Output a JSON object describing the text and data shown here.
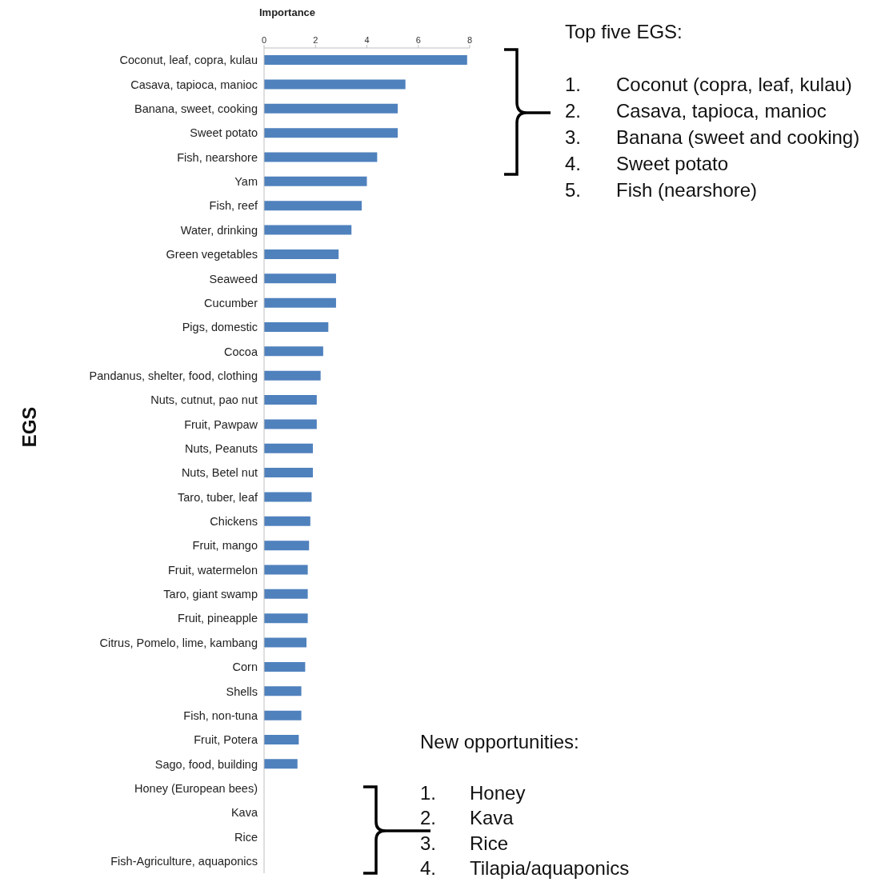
{
  "chart_data": {
    "type": "bar",
    "orientation": "horizontal",
    "xlabel": "Importance",
    "ylabel": "EGS",
    "categories": [
      "Coconut, leaf, copra, kulau",
      "Casava, tapioca, manioc",
      "Banana, sweet, cooking",
      "Sweet potato",
      "Fish, nearshore",
      "Yam",
      "Fish, reef",
      "Water, drinking",
      "Green vegetables",
      "Seaweed",
      "Cucumber",
      "Pigs, domestic",
      "Cocoa",
      "Pandanus, shelter, food, clothing",
      "Nuts, cutnut, pao nut",
      "Fruit, Pawpaw",
      "Nuts, Peanuts",
      "Nuts, Betel nut",
      "Taro, tuber, leaf",
      "Chickens",
      "Fruit, mango",
      "Fruit, watermelon",
      "Taro, giant swamp",
      "Fruit, pineapple",
      "Citrus, Pomelo, lime, kambang",
      "Corn",
      "Shells",
      "Fish, non-tuna",
      "Fruit, Potera",
      "Sago, food, building",
      "Honey (European bees)",
      "Kava",
      "Rice",
      "Fish-Agriculture, aquaponics"
    ],
    "values": [
      7.9,
      5.5,
      5.2,
      5.2,
      4.4,
      4.0,
      3.8,
      3.4,
      2.9,
      2.8,
      2.8,
      2.5,
      2.3,
      2.2,
      2.05,
      2.05,
      1.9,
      1.9,
      1.85,
      1.8,
      1.75,
      1.7,
      1.7,
      1.7,
      1.65,
      1.6,
      1.45,
      1.45,
      1.35,
      1.3,
      0,
      0,
      0,
      0
    ],
    "color": "#4f81bd",
    "xlim": [
      0,
      8
    ],
    "xticks": [
      0,
      2,
      4,
      6,
      8
    ],
    "grid": false,
    "legend": false,
    "annotations": [
      "Top five EGS:",
      "1. Coconut (copra, leaf, kulau)",
      "2. Casava, tapioca, manioc",
      "3. Banana (sweet and cooking)",
      "4. Sweet potato",
      "5. Fish (nearshore)",
      "New opportunities:",
      "1. Honey",
      "2. Kava",
      "3. Rice",
      "4. Tilapia/aquaponics"
    ]
  }
}
